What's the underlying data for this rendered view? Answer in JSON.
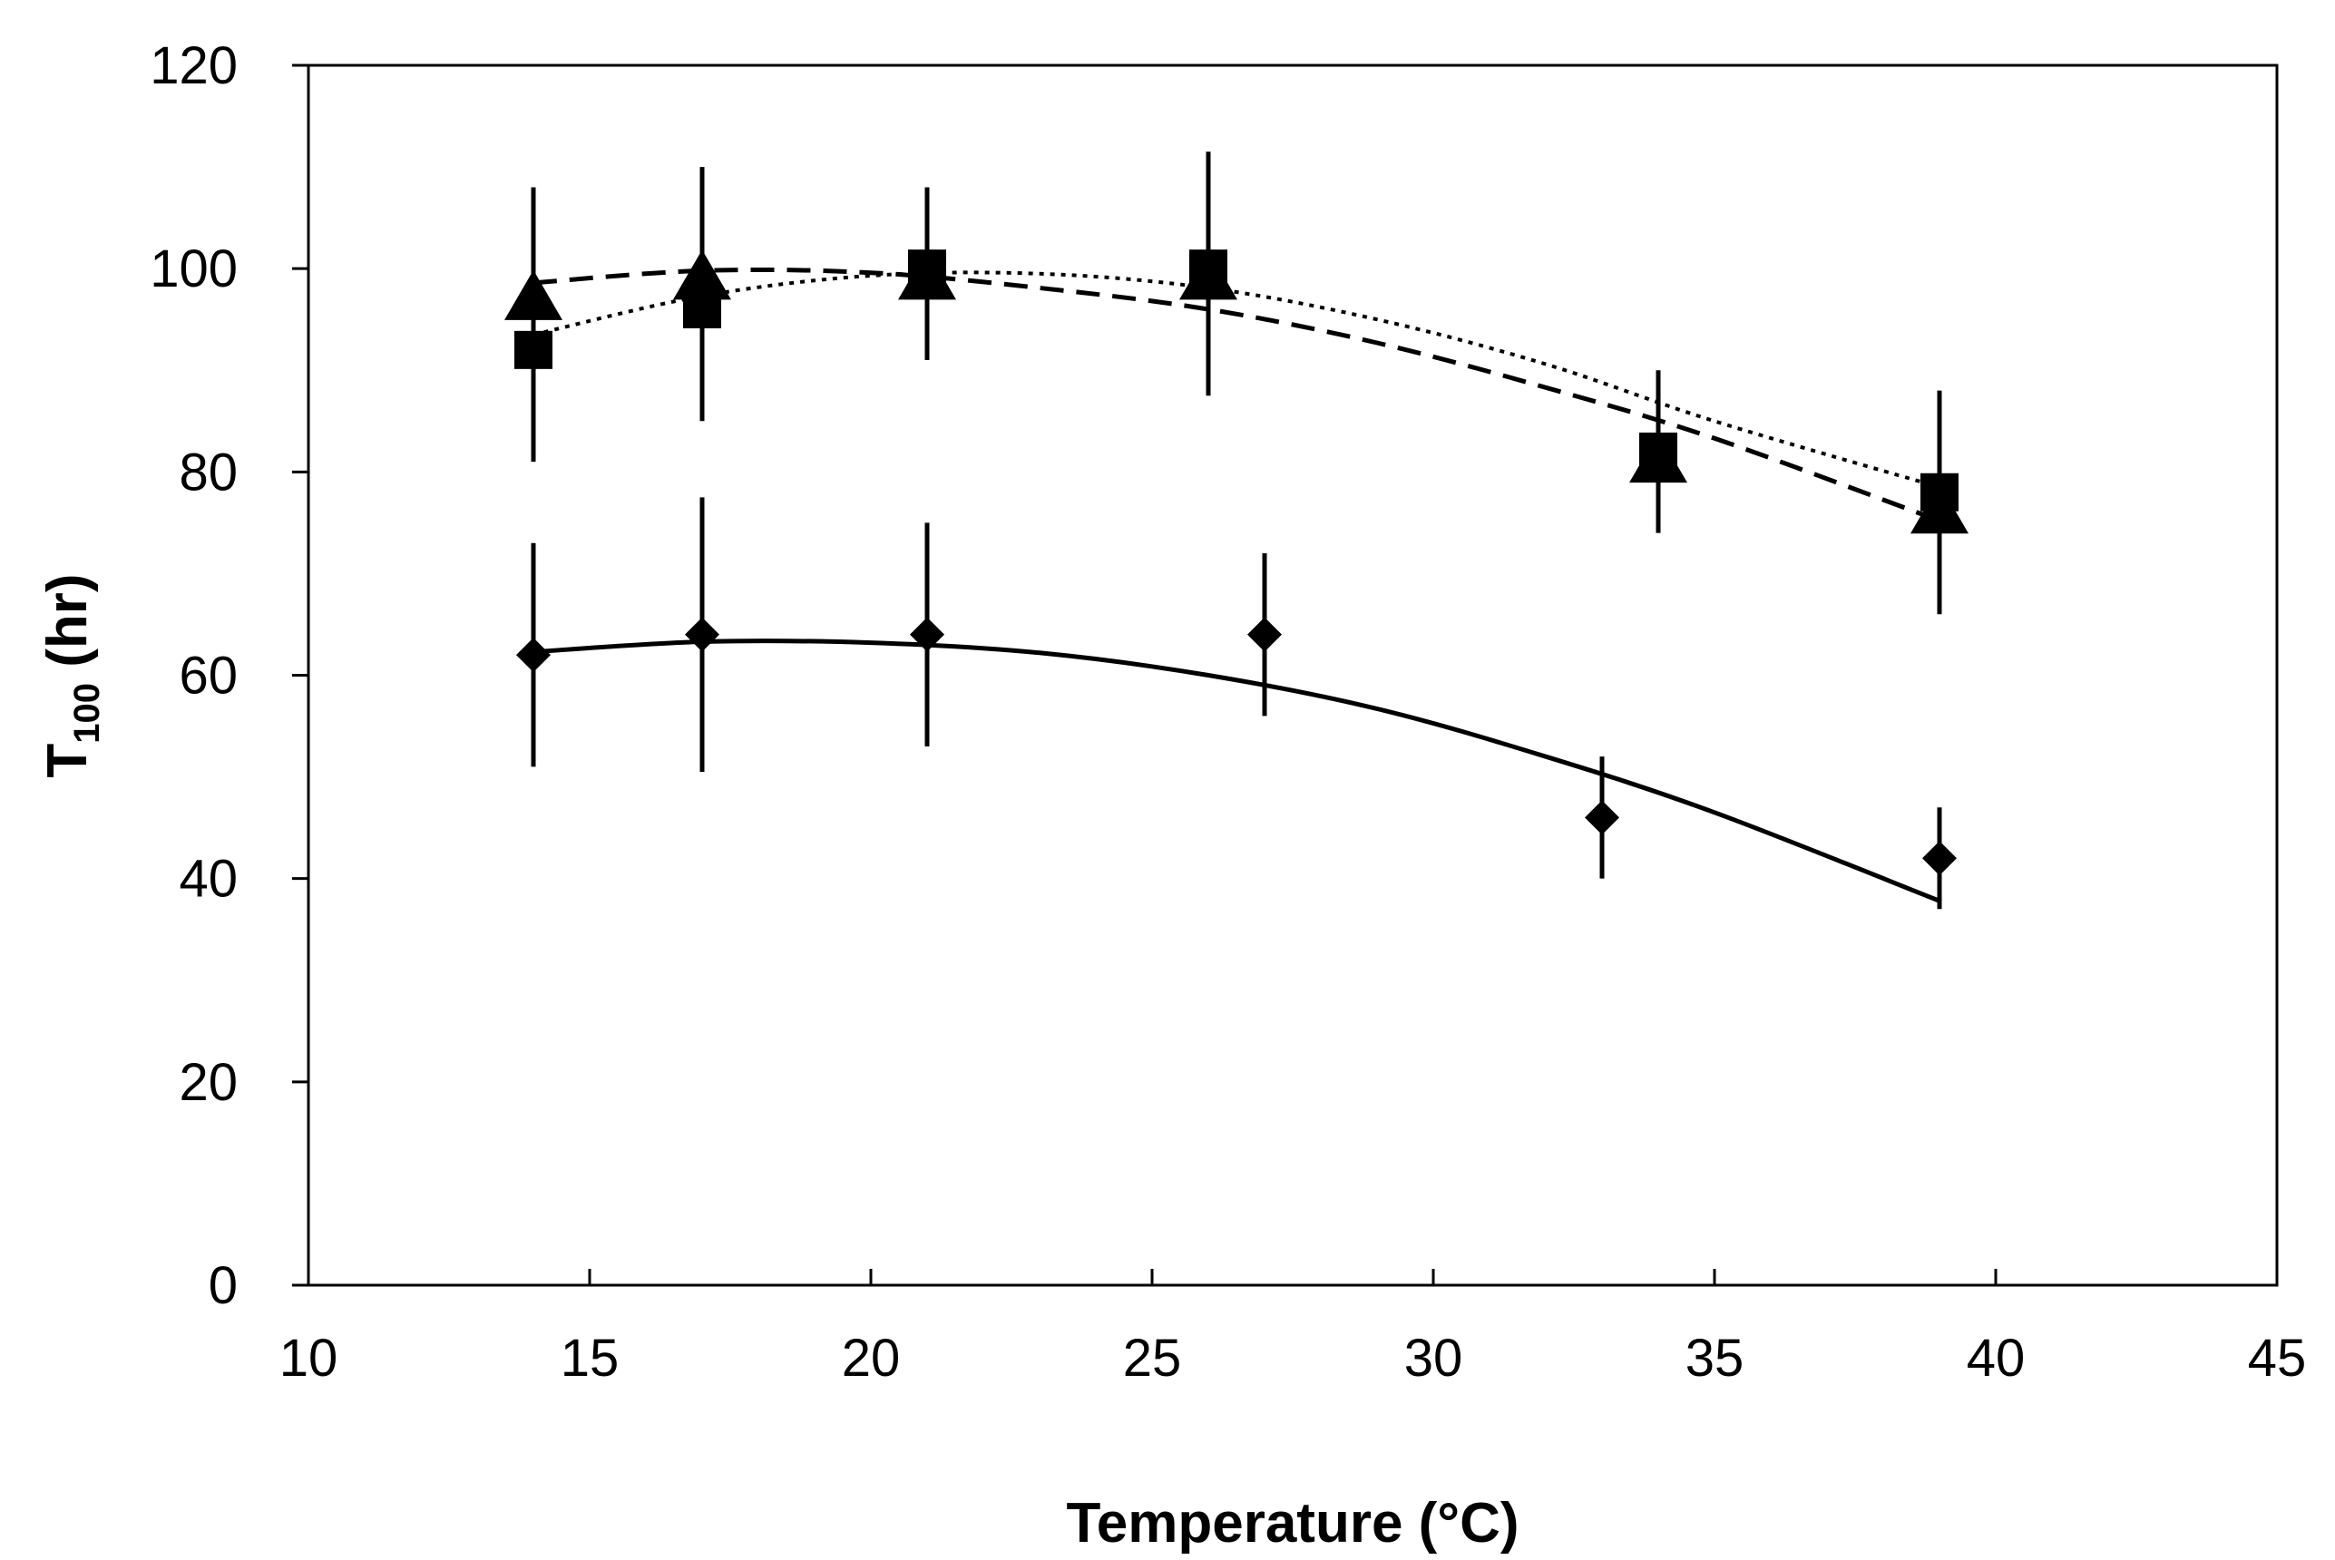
{
  "chart_data": {
    "type": "scatter",
    "title": "",
    "xlabel": "Temperature (°C)",
    "ylabel": {
      "main": "T",
      "subscript": "100",
      "suffix": " (hr)"
    },
    "xlim": [
      10,
      45
    ],
    "ylim": [
      0,
      120
    ],
    "x_ticks": [
      "10",
      "15",
      "20",
      "25",
      "30",
      "35",
      "40",
      "45"
    ],
    "y_ticks": [
      "0",
      "20",
      "40",
      "60",
      "80",
      "100",
      "120"
    ],
    "grid": false,
    "legend": null,
    "series": [
      {
        "name": "triangle",
        "marker": "triangle",
        "fit_line": "dashed",
        "x": [
          14,
          17,
          21,
          26,
          34,
          39
        ],
        "y": [
          97,
          99,
          99,
          99,
          81,
          76
        ],
        "error": [
          11,
          11,
          8,
          11.5,
          6,
          10
        ]
      },
      {
        "name": "square",
        "marker": "square",
        "fit_line": "dotted",
        "x": [
          14,
          17,
          21,
          26,
          34,
          39
        ],
        "y": [
          92,
          96,
          100,
          100,
          82,
          78
        ],
        "error": [
          11,
          11,
          8,
          11.5,
          8,
          10
        ]
      },
      {
        "name": "diamond",
        "marker": "diamond",
        "fit_line": "solid",
        "x": [
          14,
          17,
          21,
          27,
          33,
          39
        ],
        "y": [
          62,
          64,
          64,
          64,
          46,
          42
        ],
        "error": [
          11,
          13.5,
          11,
          8,
          6,
          5
        ]
      }
    ],
    "fit_curves": [
      {
        "style": "dashed",
        "x": [
          14,
          17,
          20,
          23,
          26,
          29,
          32,
          35,
          39
        ],
        "y": [
          98.6,
          99.8,
          99.6,
          98.1,
          96.0,
          92.7,
          88.3,
          83.3,
          75.2
        ]
      },
      {
        "style": "dotted",
        "x": [
          14,
          17,
          20,
          23,
          26,
          29,
          32,
          35,
          39
        ],
        "y": [
          93.5,
          97.3,
          99.3,
          99.5,
          98.1,
          95.0,
          90.6,
          85.0,
          78.5
        ]
      },
      {
        "style": "solid",
        "x": [
          14,
          17,
          20,
          23,
          26,
          29,
          32,
          35,
          39
        ],
        "y": [
          62.3,
          63.3,
          63.2,
          62.2,
          60.0,
          56.7,
          52.0,
          46.5,
          37.8
        ]
      }
    ]
  }
}
